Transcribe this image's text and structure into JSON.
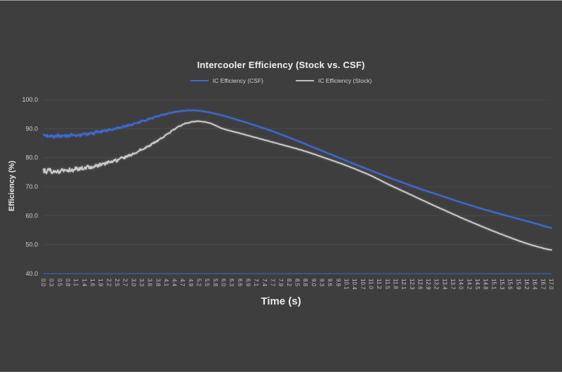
{
  "page": {
    "background": "#3e3e3e",
    "frame_color": "#ffffff"
  },
  "chart": {
    "title": "Intercooler Efficiency (Stock vs. CSF)",
    "legend": [
      {
        "label": "IC Efficiency (CSF)",
        "color": "#3e6ad1"
      },
      {
        "label": "IC Efficiency (Stock)",
        "color": "#bfbfbf"
      }
    ],
    "x_axis": {
      "title": "Time (s)"
    },
    "y_axis": {
      "title": "Efficiency (%)"
    },
    "colors": {
      "background": "#3e3e3e",
      "grid": "#4b4b4b",
      "axis_line": "#3a5ba5",
      "title_text": "#f1f1f1",
      "axis_title_text": "#eaeaea",
      "y_tick_text": "#cfcfcf",
      "x_tick_text": "#c6c6c6",
      "legend_text": "#d2d2d2",
      "csf_line": "#3e6ad1",
      "stock_line": "#cbcbcb"
    }
  },
  "chart_data": {
    "type": "line",
    "title": "Intercooler Efficiency (Stock vs. CSF)",
    "xlabel": "Time (s)",
    "ylabel": "Efficiency (%)",
    "xlim": [
      0,
      17
    ],
    "ylim": [
      40,
      100
    ],
    "grid": "horizontal",
    "legend_position": "top",
    "y_ticks": [
      100,
      90,
      80,
      70,
      60,
      50,
      40
    ],
    "y_tick_labels": [
      "100.0",
      "90.0",
      "80.0",
      "70.0",
      "60.0",
      "50.0",
      "40.0"
    ],
    "x_tick_labels": [
      "0.0",
      "0.3",
      "0.5",
      "0.8",
      "1.1",
      "1.4",
      "1.6",
      "1.9",
      "2.2",
      "2.5",
      "2.7",
      "3.0",
      "3.3",
      "3.6",
      "3.8",
      "4.1",
      "4.4",
      "4.7",
      "4.9",
      "5.2",
      "5.5",
      "5.8",
      "6.0",
      "6.3",
      "6.6",
      "6.9",
      "7.1",
      "7.4",
      "7.7",
      "7.9",
      "8.2",
      "8.5",
      "8.8",
      "9.0",
      "9.3",
      "9.6",
      "9.9",
      "10.1",
      "10.4",
      "10.7",
      "11.0",
      "11.2",
      "11.5",
      "11.8",
      "12.1",
      "12.3",
      "12.6",
      "12.9",
      "13.2",
      "13.4",
      "13.7",
      "14.0",
      "14.2",
      "14.5",
      "14.8",
      "15.1",
      "15.3",
      "15.6",
      "15.9",
      "16.2",
      "16.4",
      "16.7",
      "17.0"
    ],
    "series": [
      {
        "name": "IC Efficiency (CSF)",
        "color": "#3e6ad1",
        "line_width": 2.2,
        "noise": {
          "amplitude": 0.55,
          "fade_end_x": 5.8
        },
        "x": [
          0,
          0.5,
          1,
          1.5,
          2,
          2.5,
          3,
          3.5,
          4,
          4.5,
          5,
          5.5,
          6,
          6.5,
          7,
          7.5,
          8,
          8.5,
          9,
          9.5,
          10,
          10.5,
          11,
          11.5,
          12,
          12.5,
          13,
          13.5,
          14,
          14.5,
          15,
          15.5,
          16,
          16.5,
          17
        ],
        "y": [
          87.5,
          87.4,
          87.7,
          88.2,
          89.2,
          90.2,
          91.6,
          93.2,
          94.8,
          95.9,
          96.3,
          95.7,
          94.5,
          93.0,
          91.4,
          89.7,
          87.8,
          85.8,
          83.7,
          81.6,
          79.5,
          77.4,
          75.4,
          73.4,
          71.5,
          69.6,
          67.9,
          66.2,
          64.5,
          62.9,
          61.4,
          60.0,
          58.6,
          57.2,
          55.8
        ]
      },
      {
        "name": "IC Efficiency (Stock)",
        "color": "#cbcbcb",
        "line_width": 2,
        "noise": {
          "amplitude": 0.8,
          "fade_end_x": 5.8
        },
        "x": [
          0,
          0.5,
          1,
          1.5,
          2,
          2.5,
          3,
          3.5,
          4,
          4.5,
          5,
          5.5,
          6,
          6.5,
          7,
          7.5,
          8,
          8.5,
          9,
          9.5,
          10,
          10.5,
          11,
          11.5,
          12,
          12.5,
          13,
          13.5,
          14,
          14.5,
          15,
          15.5,
          16,
          16.5,
          17
        ],
        "y": [
          75.5,
          75.3,
          75.8,
          76.6,
          77.8,
          79.3,
          81.3,
          83.9,
          87.0,
          90.6,
          92.4,
          92.1,
          90.0,
          88.6,
          87.2,
          85.8,
          84.4,
          83.0,
          81.4,
          79.6,
          77.8,
          75.8,
          73.6,
          71.0,
          68.6,
          66.2,
          63.8,
          61.5,
          59.2,
          57.0,
          54.9,
          52.9,
          51.0,
          49.4,
          48.2
        ]
      }
    ]
  }
}
